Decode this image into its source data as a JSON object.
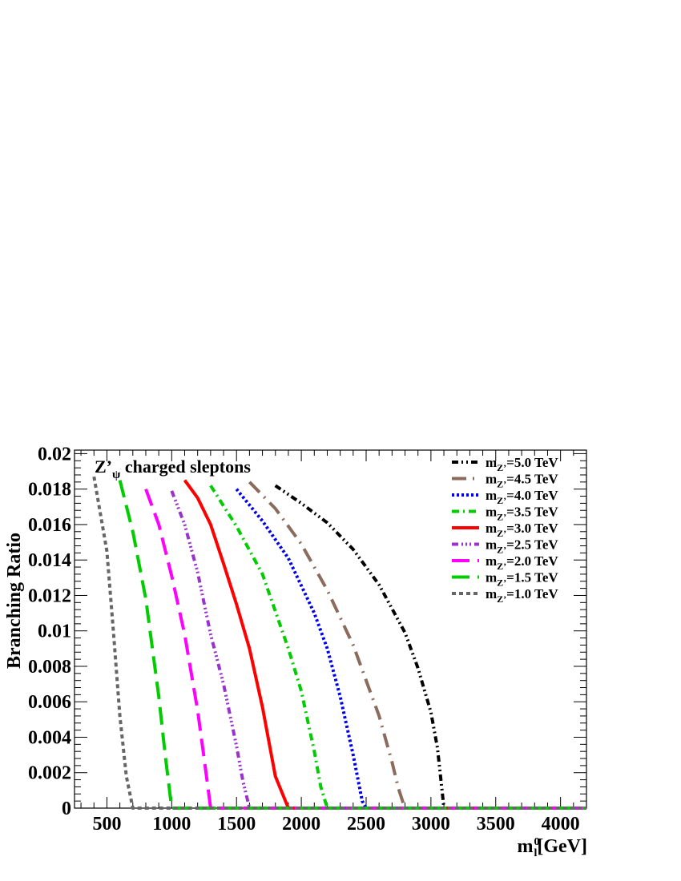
{
  "chart_data": {
    "type": "line",
    "title": "",
    "annotation": {
      "main": "Z’",
      "sub": "ψ",
      "rest": " charged sleptons"
    },
    "xlabel": {
      "main": "m",
      "sub": "l",
      "sup": "0",
      "rest": "[GeV]"
    },
    "ylabel": "Branching Ratio",
    "xlim": [
      250,
      4200
    ],
    "ylim": [
      0,
      0.0202
    ],
    "xticks": [
      500,
      1000,
      1500,
      2000,
      2500,
      3000,
      3500,
      4000
    ],
    "xtick_labels": [
      "500",
      "1000",
      "1500",
      "2000",
      "2500",
      "3000",
      "3500",
      "4000"
    ],
    "yticks": [
      0,
      0.002,
      0.004,
      0.006,
      0.008,
      0.01,
      0.012,
      0.014,
      0.016,
      0.018,
      0.02
    ],
    "ytick_labels": [
      "0",
      "0.002",
      "0.004",
      "0.006",
      "0.008",
      "0.01",
      "0.012",
      "0.014",
      "0.016",
      "0.018",
      "0.02"
    ],
    "grid": false,
    "legend_position": "top-right",
    "series": [
      {
        "name": "=5.0 TeV",
        "color": "#000000",
        "style": "dash-dot-dot",
        "x": [
          1800,
          2000,
          2200,
          2400,
          2600,
          2800,
          2900,
          3000,
          3050,
          3080,
          3100,
          4200
        ],
        "y": [
          0.0182,
          0.0172,
          0.0161,
          0.0146,
          0.0126,
          0.0099,
          0.0079,
          0.0054,
          0.0034,
          0.0014,
          0,
          0
        ]
      },
      {
        "name": "=4.5 TeV",
        "color": "#8b6b5b",
        "style": "long-dash-dot",
        "x": [
          1600,
          1800,
          2000,
          2200,
          2400,
          2600,
          2700,
          2750,
          2790,
          2800,
          4200
        ],
        "y": [
          0.0184,
          0.0169,
          0.0149,
          0.0123,
          0.0092,
          0.0052,
          0.0026,
          0.0011,
          0.0002,
          0,
          0
        ]
      },
      {
        "name": "=4.0 TeV",
        "color": "#0000ee",
        "style": "dotted",
        "x": [
          1500,
          1700,
          1900,
          2100,
          2200,
          2300,
          2400,
          2470,
          2500,
          4200
        ],
        "y": [
          0.018,
          0.0162,
          0.0141,
          0.011,
          0.009,
          0.0063,
          0.003,
          0.0004,
          0,
          0
        ]
      },
      {
        "name": "=3.5 TeV",
        "color": "#00cc00",
        "style": "dash-dot",
        "x": [
          1300,
          1500,
          1700,
          1900,
          2000,
          2100,
          2150,
          2200,
          4200
        ],
        "y": [
          0.0182,
          0.0159,
          0.0132,
          0.009,
          0.0066,
          0.0032,
          0.0012,
          0,
          0
        ]
      },
      {
        "name": "=3.0 TeV",
        "color": "#ff0000",
        "style": "solid",
        "x": [
          1100,
          1200,
          1300,
          1400,
          1500,
          1600,
          1700,
          1800,
          1900,
          4200
        ],
        "y": [
          0.0185,
          0.0175,
          0.016,
          0.0138,
          0.0115,
          0.009,
          0.0057,
          0.0018,
          0,
          0
        ]
      },
      {
        "name": "=2.5 TeV",
        "color": "#9933cc",
        "style": "dash-dot-dot-dot",
        "x": [
          1000,
          1100,
          1200,
          1300,
          1400,
          1500,
          1550,
          1600,
          4200
        ],
        "y": [
          0.0179,
          0.016,
          0.0133,
          0.0098,
          0.007,
          0.0035,
          0.0015,
          0,
          0
        ]
      },
      {
        "name": "=2.0 TeV",
        "color": "#ff00ff",
        "style": "long-dash",
        "x": [
          800,
          900,
          1000,
          1100,
          1200,
          1250,
          1300,
          4200
        ],
        "y": [
          0.018,
          0.016,
          0.0131,
          0.0098,
          0.0055,
          0.0028,
          0,
          0
        ]
      },
      {
        "name": "=1.5 TeV",
        "color": "#00cc00",
        "style": "long-dash",
        "x": [
          600,
          700,
          800,
          900,
          950,
          1000,
          4200
        ],
        "y": [
          0.0185,
          0.0156,
          0.0118,
          0.0063,
          0.003,
          0,
          0
        ]
      },
      {
        "name": "=1.0 TeV",
        "color": "#666666",
        "style": "dashed",
        "x": [
          400,
          500,
          550,
          600,
          650,
          700,
          4200
        ],
        "y": [
          0.0187,
          0.0145,
          0.01,
          0.0052,
          0.0018,
          0,
          0
        ]
      }
    ],
    "legend_prefix": {
      "main": "m",
      "sub": "Z’"
    }
  }
}
